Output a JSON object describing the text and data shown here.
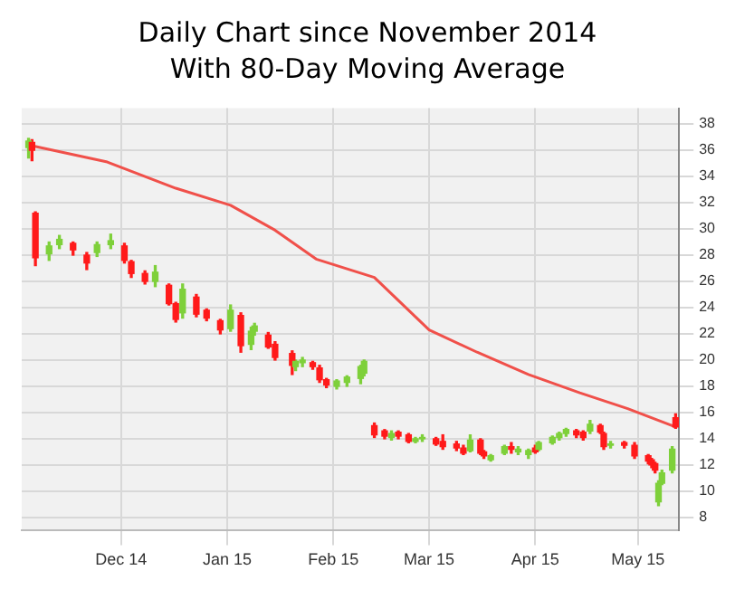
{
  "chart_data": {
    "type": "candlestick",
    "title": "Daily Chart since November 2014",
    "subtitle": "With 80-Day Moving Average",
    "grid": true,
    "xlim": [
      "2014-11-02",
      "2015-05-13"
    ],
    "xticks": [
      {
        "value": "2014-12-01",
        "label": "Dec 14"
      },
      {
        "value": "2015-01-01",
        "label": "Jan 15"
      },
      {
        "value": "2015-02-01",
        "label": "Feb 15"
      },
      {
        "value": "2015-03-01",
        "label": "Mar 15"
      },
      {
        "value": "2015-04-01",
        "label": "Apr 15"
      },
      {
        "value": "2015-05-01",
        "label": "May 15"
      }
    ],
    "ylim": [
      7,
      39.2
    ],
    "yticks": [
      8,
      10,
      12,
      14,
      16,
      18,
      20,
      22,
      24,
      26,
      28,
      30,
      32,
      34,
      36,
      38
    ],
    "series": [
      {
        "x": [
          "2014-11-04",
          "2014-11-05",
          "2014-11-06",
          "2014-11-10",
          "2014-11-13",
          "2014-11-17",
          "2014-11-21",
          "2014-11-24",
          "2014-11-28",
          "2014-12-02",
          "2014-12-04",
          "2014-12-08",
          "2014-12-11",
          "2014-12-15",
          "2014-12-17",
          "2014-12-19",
          "2014-12-23",
          "2014-12-26",
          "2014-12-30",
          "2015-01-02",
          "2015-01-05",
          "2015-01-08",
          "2015-01-09",
          "2015-01-13",
          "2015-01-15",
          "2015-01-20",
          "2015-01-21",
          "2015-01-23",
          "2015-01-26",
          "2015-01-28",
          "2015-01-30",
          "2015-02-02",
          "2015-02-05",
          "2015-02-09",
          "2015-02-10",
          "2015-02-13",
          "2015-02-16",
          "2015-02-18",
          "2015-02-20",
          "2015-02-23",
          "2015-02-25",
          "2015-02-27",
          "2015-03-03",
          "2015-03-05",
          "2015-03-09",
          "2015-03-11",
          "2015-03-13",
          "2015-03-16",
          "2015-03-17",
          "2015-03-19",
          "2015-03-23",
          "2015-03-25",
          "2015-03-27",
          "2015-03-30",
          "2015-04-01",
          "2015-04-02",
          "2015-04-06",
          "2015-04-08",
          "2015-04-10",
          "2015-04-13",
          "2015-04-15",
          "2015-04-17",
          "2015-04-20",
          "2015-04-21",
          "2015-04-23",
          "2015-04-27",
          "2015-04-30",
          "2015-05-04",
          "2015-05-05",
          "2015-05-06",
          "2015-05-07",
          "2015-05-08",
          "2015-05-11",
          "2015-05-12"
        ],
        "ohlc": [
          [
            36.2,
            36.9,
            35.4,
            36.7
          ],
          [
            36.6,
            36.8,
            35.2,
            36.0
          ],
          [
            31.2,
            31.3,
            27.2,
            27.8
          ],
          [
            28.1,
            29.0,
            27.6,
            28.7
          ],
          [
            28.8,
            29.5,
            28.5,
            29.2
          ],
          [
            28.9,
            29.0,
            28.0,
            28.4
          ],
          [
            28.0,
            28.2,
            26.9,
            27.4
          ],
          [
            28.2,
            29.0,
            27.9,
            28.8
          ],
          [
            28.8,
            29.6,
            28.5,
            29.1
          ],
          [
            28.7,
            28.9,
            27.4,
            27.6
          ],
          [
            27.5,
            27.6,
            26.3,
            26.6
          ],
          [
            26.6,
            26.8,
            25.8,
            26.0
          ],
          [
            26.0,
            27.2,
            25.6,
            26.7
          ],
          [
            25.7,
            25.8,
            24.2,
            24.3
          ],
          [
            24.3,
            24.4,
            22.9,
            23.1
          ],
          [
            23.6,
            25.8,
            23.2,
            25.4
          ],
          [
            24.8,
            25.0,
            23.3,
            23.5
          ],
          [
            23.8,
            23.9,
            23.0,
            23.2
          ],
          [
            23.0,
            23.1,
            22.0,
            22.3
          ],
          [
            22.4,
            24.2,
            22.2,
            23.8
          ],
          [
            23.4,
            23.6,
            20.6,
            21.1
          ],
          [
            21.2,
            22.5,
            20.8,
            22.2
          ],
          [
            22.2,
            22.8,
            21.9,
            22.6
          ],
          [
            21.9,
            22.1,
            20.9,
            21.0
          ],
          [
            21.2,
            21.4,
            20.0,
            20.2
          ],
          [
            20.5,
            20.7,
            18.9,
            19.6
          ],
          [
            19.5,
            20.0,
            19.2,
            19.9
          ],
          [
            19.8,
            20.2,
            19.5,
            20.0
          ],
          [
            19.8,
            19.9,
            19.3,
            19.5
          ],
          [
            19.4,
            19.6,
            18.3,
            18.5
          ],
          [
            18.5,
            18.6,
            17.9,
            18.1
          ],
          [
            18.0,
            18.5,
            17.8,
            18.4
          ],
          [
            18.3,
            18.8,
            18.0,
            18.7
          ],
          [
            18.6,
            19.6,
            18.2,
            19.5
          ],
          [
            19.0,
            20.0,
            18.8,
            19.9
          ],
          [
            15.0,
            15.2,
            14.1,
            14.3
          ],
          [
            14.6,
            14.7,
            14.0,
            14.2
          ],
          [
            14.1,
            14.6,
            13.9,
            14.4
          ],
          [
            14.5,
            14.6,
            14.0,
            14.2
          ],
          [
            14.3,
            14.4,
            13.7,
            13.8
          ],
          [
            13.8,
            14.1,
            13.7,
            14.0
          ],
          [
            14.0,
            14.3,
            13.8,
            14.1
          ],
          [
            14.0,
            14.1,
            13.5,
            13.6
          ],
          [
            13.8,
            14.3,
            13.2,
            13.4
          ],
          [
            13.6,
            13.8,
            13.1,
            13.3
          ],
          [
            13.3,
            13.5,
            12.8,
            12.9
          ],
          [
            13.1,
            14.3,
            13.0,
            13.9
          ],
          [
            13.9,
            14.0,
            12.8,
            12.9
          ],
          [
            13.0,
            13.1,
            12.5,
            12.7
          ],
          [
            12.4,
            12.8,
            12.3,
            12.7
          ],
          [
            12.9,
            13.5,
            12.8,
            13.4
          ],
          [
            13.4,
            13.7,
            12.9,
            13.2
          ],
          [
            13.0,
            13.4,
            12.8,
            13.2
          ],
          [
            12.8,
            13.2,
            12.5,
            13.1
          ],
          [
            13.3,
            13.5,
            12.9,
            13.0
          ],
          [
            13.2,
            13.8,
            13.1,
            13.7
          ],
          [
            13.7,
            14.2,
            13.6,
            14.1
          ],
          [
            14.1,
            14.5,
            13.9,
            14.4
          ],
          [
            14.4,
            14.8,
            14.2,
            14.7
          ],
          [
            14.6,
            14.7,
            14.1,
            14.3
          ],
          [
            14.5,
            14.6,
            13.9,
            14.1
          ],
          [
            14.6,
            15.4,
            14.4,
            15.1
          ],
          [
            15.0,
            15.1,
            14.4,
            14.5
          ],
          [
            14.4,
            14.5,
            13.2,
            13.4
          ],
          [
            13.5,
            13.8,
            13.3,
            13.6
          ],
          [
            13.7,
            13.8,
            13.3,
            13.5
          ],
          [
            13.5,
            13.7,
            12.5,
            12.7
          ],
          [
            12.7,
            12.8,
            12.1,
            12.3
          ],
          [
            12.4,
            12.5,
            11.8,
            12.0
          ],
          [
            12.1,
            12.2,
            11.4,
            11.6
          ],
          [
            9.2,
            10.8,
            8.9,
            10.6
          ],
          [
            10.6,
            11.6,
            10.5,
            11.4
          ],
          [
            11.6,
            13.4,
            11.4,
            13.2
          ],
          [
            15.6,
            15.9,
            14.8,
            14.9
          ]
        ],
        "colors": [
          "#7ed03a",
          "#ff1a1a",
          "#ff1a1a",
          "#7ed03a",
          "#7ed03a",
          "#ff1a1a",
          "#ff1a1a",
          "#7ed03a",
          "#7ed03a",
          "#ff1a1a",
          "#ff1a1a",
          "#ff1a1a",
          "#7ed03a",
          "#ff1a1a",
          "#ff1a1a",
          "#7ed03a",
          "#ff1a1a",
          "#ff1a1a",
          "#ff1a1a",
          "#7ed03a",
          "#ff1a1a",
          "#7ed03a",
          "#7ed03a",
          "#ff1a1a",
          "#ff1a1a",
          "#ff1a1a",
          "#7ed03a",
          "#7ed03a",
          "#ff1a1a",
          "#ff1a1a",
          "#ff1a1a",
          "#7ed03a",
          "#7ed03a",
          "#7ed03a",
          "#7ed03a",
          "#ff1a1a",
          "#ff1a1a",
          "#7ed03a",
          "#ff1a1a",
          "#ff1a1a",
          "#7ed03a",
          "#7ed03a",
          "#ff1a1a",
          "#ff1a1a",
          "#ff1a1a",
          "#ff1a1a",
          "#7ed03a",
          "#ff1a1a",
          "#ff1a1a",
          "#7ed03a",
          "#7ed03a",
          "#ff1a1a",
          "#7ed03a",
          "#7ed03a",
          "#ff1a1a",
          "#7ed03a",
          "#7ed03a",
          "#7ed03a",
          "#7ed03a",
          "#ff1a1a",
          "#ff1a1a",
          "#7ed03a",
          "#ff1a1a",
          "#ff1a1a",
          "#7ed03a",
          "#ff1a1a",
          "#ff1a1a",
          "#ff1a1a",
          "#ff1a1a",
          "#ff1a1a",
          "#7ed03a",
          "#7ed03a",
          "#7ed03a",
          "#ff1a1a"
        ]
      },
      {
        "type": "line",
        "color": "#f0504a",
        "x": [
          "2014-11-04",
          "2014-11-27",
          "2014-12-17",
          "2015-01-02",
          "2015-01-15",
          "2015-01-27",
          "2015-02-13",
          "2015-03-01",
          "2015-03-15",
          "2015-03-30",
          "2015-04-14",
          "2015-04-28",
          "2015-05-12"
        ],
        "values": [
          36.4,
          35.1,
          33.1,
          31.8,
          29.9,
          27.7,
          26.3,
          22.3,
          20.6,
          18.9,
          17.5,
          16.3,
          14.9
        ]
      }
    ]
  }
}
